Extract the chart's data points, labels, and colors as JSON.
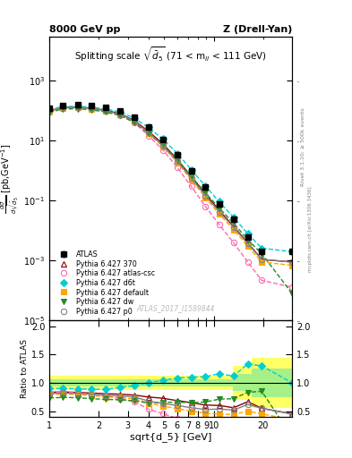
{
  "title_left": "8000 GeV pp",
  "title_right": "Z (Drell-Yan)",
  "plot_title": "Splitting scale $\\sqrt{d_5}$ (71 < m$_{ll}$ < 111 GeV)",
  "xlabel": "sqrt{d_5} [GeV]",
  "ylabel_main": "d$\\sigma$\n/dsqrt($\\overline{d}_5$) [pb,GeV$^{-1}$]",
  "ylabel_ratio": "Ratio to ATLAS",
  "watermark": "ATLAS_2017_I1589844",
  "x_atlas": [
    1.0,
    1.2,
    1.5,
    1.8,
    2.2,
    2.7,
    3.3,
    4.0,
    4.9,
    6.0,
    7.3,
    8.9,
    10.8,
    13.2,
    16.1,
    19.6,
    30.0
  ],
  "y_atlas": [
    120,
    155,
    160,
    150,
    130,
    100,
    60,
    28,
    11,
    3.5,
    1.0,
    0.28,
    0.08,
    0.025,
    0.006,
    0.002,
    0.002
  ],
  "y_atlas_err_lo": [
    8,
    9,
    9,
    9,
    8,
    7,
    4,
    2,
    0.8,
    0.3,
    0.08,
    0.025,
    0.008,
    0.003,
    0.001,
    0.0004,
    0.0004
  ],
  "y_atlas_err_hi": [
    8,
    9,
    9,
    9,
    8,
    7,
    4,
    2,
    0.8,
    0.3,
    0.08,
    0.025,
    0.008,
    0.003,
    0.001,
    0.0004,
    0.0004
  ],
  "x_mc": [
    1.0,
    1.2,
    1.5,
    1.8,
    2.2,
    2.7,
    3.3,
    4.0,
    4.9,
    6.0,
    7.3,
    8.9,
    10.8,
    13.2,
    16.1,
    19.6,
    30.0
  ],
  "y_370": [
    100,
    130,
    133,
    123,
    105,
    80,
    47,
    21,
    8.0,
    2.4,
    0.65,
    0.17,
    0.048,
    0.014,
    0.004,
    0.0011,
    0.0009
  ],
  "y_csc": [
    100,
    130,
    132,
    120,
    100,
    72,
    40,
    15,
    5.0,
    1.3,
    0.3,
    0.065,
    0.016,
    0.004,
    0.0009,
    0.00022,
    0.00013
  ],
  "y_d6t": [
    108,
    140,
    143,
    133,
    115,
    92,
    57,
    28,
    11.5,
    3.8,
    1.1,
    0.31,
    0.093,
    0.028,
    0.008,
    0.0026,
    0.002
  ],
  "y_default": [
    95,
    124,
    127,
    116,
    98,
    74,
    43,
    18,
    6.5,
    1.9,
    0.5,
    0.13,
    0.036,
    0.011,
    0.003,
    0.0009,
    0.0007
  ],
  "y_dw": [
    88,
    115,
    118,
    108,
    92,
    70,
    41,
    18,
    7.2,
    2.3,
    0.65,
    0.185,
    0.057,
    0.018,
    0.005,
    0.0017,
    8e-05
  ],
  "y_p0": [
    97,
    127,
    130,
    120,
    101,
    77,
    45,
    19,
    7.0,
    2.1,
    0.56,
    0.148,
    0.043,
    0.013,
    0.0037,
    0.0011,
    0.0009
  ],
  "color_atlas": "#000000",
  "color_370": "#8B0000",
  "color_csc": "#FF69B4",
  "color_d6t": "#00CED1",
  "color_default": "#FFA500",
  "color_dw": "#228B22",
  "color_p0": "#808080",
  "xlim": [
    1.0,
    30.0
  ],
  "ylim_main": [
    1e-05,
    30000.0
  ],
  "ylim_ratio": [
    0.4,
    2.1
  ],
  "band_x_edges": [
    1.0,
    2.0,
    3.0,
    4.0,
    5.0,
    6.0,
    7.0,
    8.0,
    9.0,
    10.0,
    13.0,
    17.0,
    30.0
  ],
  "band_green_lo": [
    0.93,
    0.93,
    0.93,
    0.93,
    0.93,
    0.93,
    0.93,
    0.93,
    0.93,
    0.93,
    0.85,
    0.75,
    0.65
  ],
  "band_green_hi": [
    1.07,
    1.07,
    1.07,
    1.07,
    1.07,
    1.07,
    1.07,
    1.07,
    1.07,
    1.07,
    1.15,
    1.25,
    1.35
  ],
  "band_yellow_lo": [
    0.87,
    0.87,
    0.87,
    0.87,
    0.87,
    0.87,
    0.87,
    0.87,
    0.87,
    0.87,
    0.7,
    0.55,
    0.45
  ],
  "band_yellow_hi": [
    1.13,
    1.13,
    1.13,
    1.13,
    1.13,
    1.13,
    1.13,
    1.13,
    1.13,
    1.13,
    1.3,
    1.45,
    1.55
  ]
}
